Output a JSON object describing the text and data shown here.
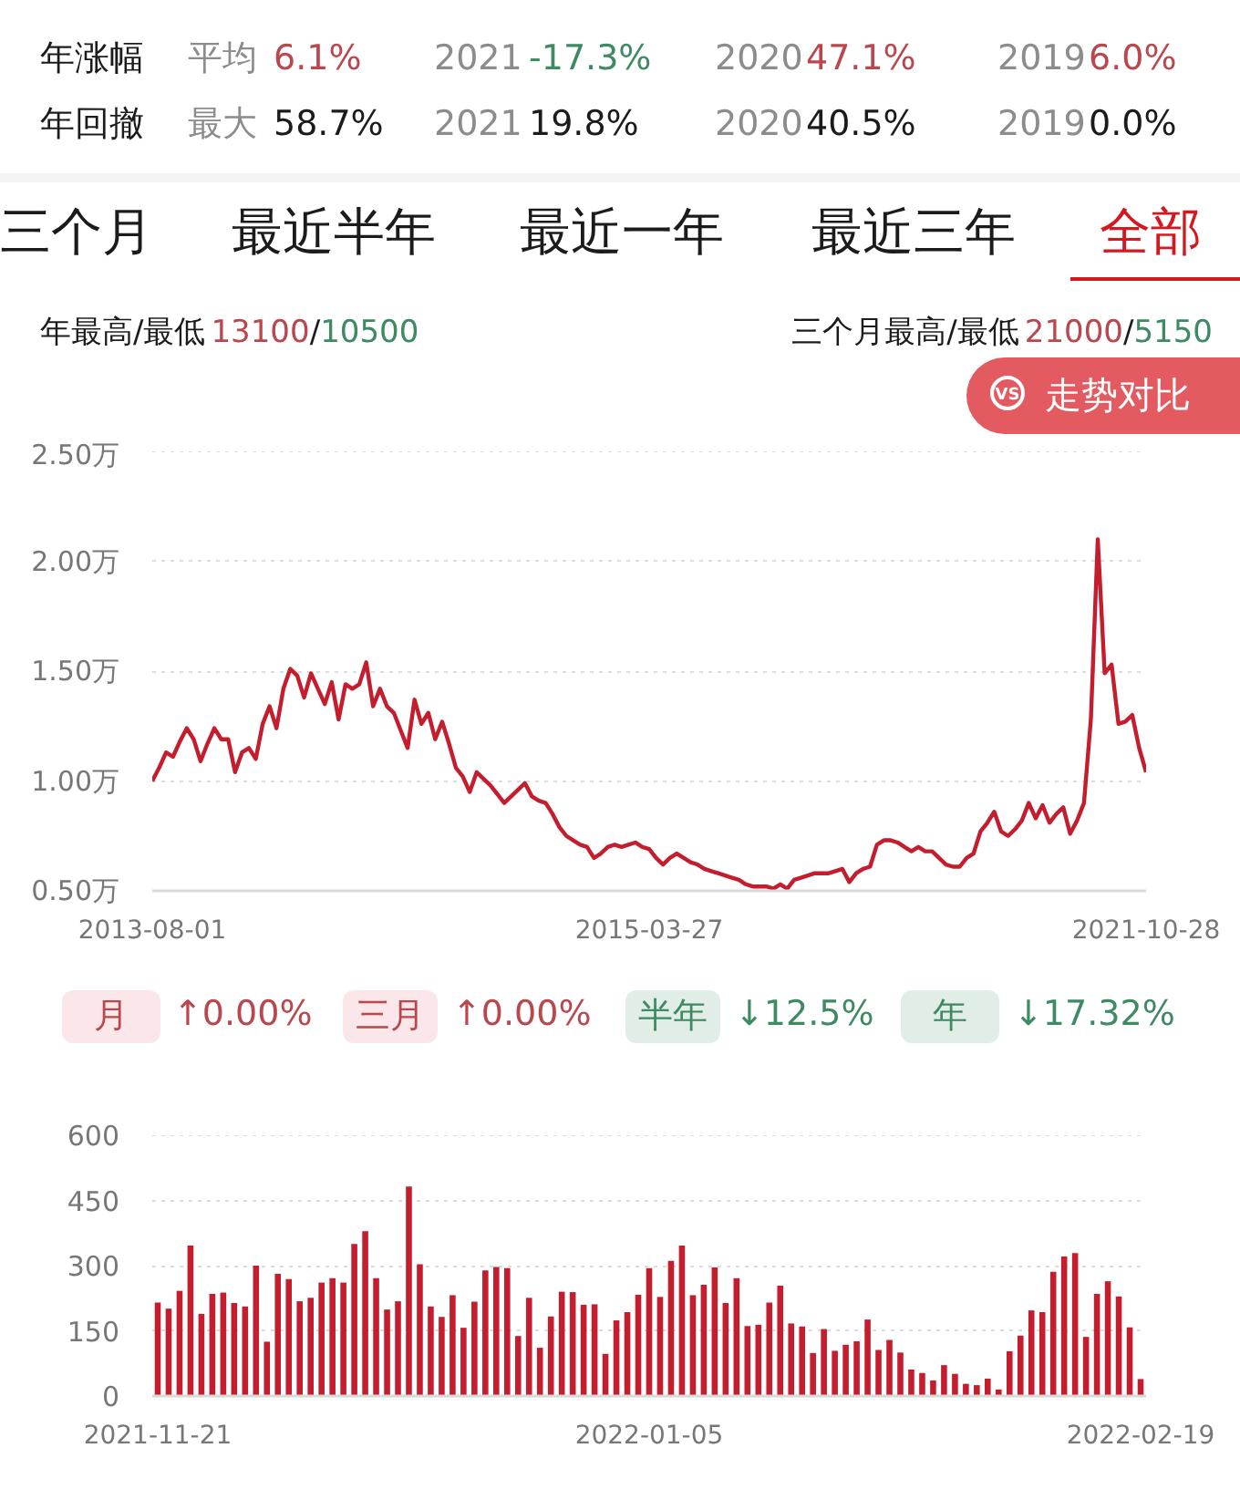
{
  "chart_data": [
    {
      "type": "other",
      "annotations": [
        "年涨幅",
        "平均",
        "6.1%",
        "2021",
        "-17.3%",
        "2020",
        "47.1%",
        "2019",
        "6.0%",
        "年回撤",
        "最大",
        "58.7%",
        "2021",
        "19.8%",
        "2020",
        "40.5%",
        "2019",
        "0.0%"
      ]
    },
    {
      "type": "line",
      "annotations": [
        "三个月",
        "最近半年",
        "最近一年",
        "最近三年",
        "全部",
        "年最高/最低",
        "13100/10500",
        "三个月最高/最低",
        "21000/5150",
        "VS",
        "走势对比"
      ],
      "categories": [
        "2013-08-01",
        null,
        null,
        null,
        null,
        null,
        null,
        null,
        null,
        null,
        null,
        null,
        null,
        null,
        null,
        null,
        null,
        null,
        null,
        null,
        null,
        null,
        null,
        null,
        null,
        null,
        null,
        null,
        null,
        null,
        null,
        null,
        null,
        null,
        null,
        null,
        null,
        null,
        null,
        null,
        null,
        null,
        null,
        null,
        null,
        null,
        null,
        null,
        null,
        null,
        null,
        null,
        null,
        null,
        null,
        null,
        null,
        null,
        null,
        null,
        null,
        null,
        null,
        null,
        null,
        null,
        null,
        null,
        null,
        null,
        null,
        null,
        "2015-03-27",
        null,
        null,
        null,
        null,
        null,
        null,
        null,
        null,
        null,
        null,
        null,
        null,
        null,
        null,
        null,
        null,
        null,
        null,
        null,
        null,
        null,
        null,
        null,
        null,
        null,
        null,
        null,
        null,
        null,
        null,
        null,
        null,
        null,
        null,
        null,
        null,
        null,
        null,
        null,
        null,
        null,
        null,
        null,
        null,
        null,
        null,
        null,
        null,
        null,
        null,
        null,
        null,
        null,
        null,
        null,
        null,
        null,
        null,
        null,
        null,
        null,
        null,
        null,
        null,
        null,
        null,
        null,
        null,
        null,
        null,
        null,
        "2021-10-28"
      ],
      "series": [
        {
          "color": "#c41e2e",
          "values": [
            1.0,
            1.06,
            1.13,
            1.11,
            1.18,
            1.24,
            1.19,
            1.09,
            1.17,
            1.24,
            1.19,
            1.19,
            1.04,
            1.13,
            1.15,
            1.1,
            1.26,
            1.34,
            1.24,
            1.42,
            1.51,
            1.48,
            1.38,
            1.49,
            1.42,
            1.35,
            1.45,
            1.28,
            1.44,
            1.42,
            1.44,
            1.54,
            1.34,
            1.42,
            1.34,
            1.31,
            1.23,
            1.15,
            1.37,
            1.26,
            1.31,
            1.19,
            1.27,
            1.17,
            1.06,
            1.02,
            0.95,
            1.04,
            1.01,
            0.98,
            0.94,
            0.9,
            0.93,
            0.96,
            0.99,
            0.93,
            0.91,
            0.9,
            0.85,
            0.79,
            0.75,
            0.73,
            0.71,
            0.7,
            0.65,
            0.67,
            0.7,
            0.71,
            0.7,
            0.71,
            0.72,
            0.7,
            0.69,
            0.65,
            0.62,
            0.65,
            0.67,
            0.65,
            0.63,
            0.62,
            0.6,
            0.59,
            0.58,
            0.57,
            0.56,
            0.55,
            0.53,
            0.52,
            0.52,
            0.52,
            0.51,
            0.53,
            0.51,
            0.55,
            0.56,
            0.57,
            0.58,
            0.58,
            0.58,
            0.59,
            0.6,
            0.54,
            0.58,
            0.6,
            0.61,
            0.71,
            0.73,
            0.73,
            0.72,
            0.7,
            0.68,
            0.7,
            0.68,
            0.68,
            0.65,
            0.62,
            0.61,
            0.61,
            0.65,
            0.67,
            0.77,
            0.81,
            0.86,
            0.77,
            0.75,
            0.78,
            0.82,
            0.9,
            0.83,
            0.89,
            0.81,
            0.85,
            0.88,
            0.76,
            0.82,
            0.9,
            1.28,
            2.1,
            1.49,
            1.53,
            1.26,
            1.27,
            1.3,
            1.15,
            1.04
          ]
        }
      ],
      "ylim": [
        0.5,
        2.5
      ],
      "yticks": [
        {
          "value": 0.5,
          "label": "0.50万"
        },
        {
          "value": 1.0,
          "label": "1.00万"
        },
        {
          "value": 1.5,
          "label": "1.50万"
        },
        {
          "value": 2.0,
          "label": "2.00万"
        },
        {
          "value": 2.5,
          "label": "2.50万"
        }
      ],
      "grid": "y"
    },
    {
      "type": "other",
      "annotations": [
        "月",
        "↑0.00%",
        "三月",
        "↑0.00%",
        "半年",
        "↓12.5%",
        "年",
        "↓17.32%"
      ]
    },
    {
      "type": "bar",
      "x": [
        "2021-11-21",
        "2021-11-22",
        "2021-11-23",
        "2021-11-24",
        "2021-11-25",
        "2021-11-26",
        "2021-11-27",
        "2021-11-28",
        "2021-11-29",
        "2021-11-30",
        "2021-12-01",
        "2021-12-02",
        "2021-12-03",
        "2021-12-04",
        "2021-12-05",
        "2021-12-06",
        "2021-12-07",
        "2021-12-08",
        "2021-12-09",
        "2021-12-10",
        "2021-12-11",
        "2021-12-12",
        "2021-12-13",
        "2021-12-14",
        "2021-12-15",
        "2021-12-16",
        "2021-12-17",
        "2021-12-18",
        "2021-12-19",
        "2021-12-20",
        "2021-12-21",
        "2021-12-22",
        "2021-12-23",
        "2021-12-24",
        "2021-12-25",
        "2021-12-26",
        "2021-12-27",
        "2021-12-28",
        "2021-12-29",
        "2021-12-30",
        "2021-12-31",
        "2022-01-01",
        "2022-01-02",
        "2022-01-03",
        "2022-01-04",
        "2022-01-05",
        "2022-01-06",
        "2022-01-07",
        "2022-01-08",
        "2022-01-09",
        "2022-01-10",
        "2022-01-11",
        "2022-01-12",
        "2022-01-13",
        "2022-01-14",
        "2022-01-15",
        "2022-01-16",
        "2022-01-17",
        "2022-01-18",
        "2022-01-19",
        "2022-01-20",
        "2022-01-21",
        "2022-01-22",
        "2022-01-23",
        "2022-01-24",
        "2022-01-25",
        "2022-01-26",
        "2022-01-27",
        "2022-01-28",
        "2022-01-29",
        "2022-01-30",
        "2022-01-31",
        "2022-02-01",
        "2022-02-02",
        "2022-02-03",
        "2022-02-04",
        "2022-02-05",
        "2022-02-06",
        "2022-02-07",
        "2022-02-08",
        "2022-02-09",
        "2022-02-10",
        "2022-02-11",
        "2022-02-12",
        "2022-02-13",
        "2022-02-14",
        "2022-02-15",
        "2022-02-16",
        "2022-02-17",
        "2022-02-18",
        "2022-02-19"
      ],
      "values": [
        215,
        201,
        242,
        346,
        189,
        235,
        238,
        214,
        206,
        300,
        125,
        281,
        269,
        218,
        226,
        261,
        271,
        261,
        350,
        379,
        271,
        199,
        218,
        482,
        303,
        206,
        182,
        232,
        157,
        217,
        289,
        297,
        294,
        138,
        226,
        111,
        183,
        240,
        239,
        210,
        211,
        97,
        174,
        193,
        233,
        294,
        228,
        311,
        346,
        232,
        256,
        296,
        214,
        271,
        161,
        164,
        215,
        254,
        167,
        160,
        99,
        154,
        104,
        118,
        126,
        176,
        106,
        129,
        100,
        61,
        53,
        36,
        71,
        51,
        28,
        25,
        40,
        15,
        103,
        139,
        197,
        193,
        286,
        321,
        329,
        136,
        235,
        264,
        229,
        158,
        39
      ],
      "color": "#c41e2e",
      "xlim": [
        "2021-11-20T12:00",
        "2022-02-19T12:00"
      ],
      "xticks": [
        "2021-11-21",
        "2022-01-05",
        "2022-02-19"
      ],
      "ylim": [
        0,
        600
      ],
      "yticks": [
        0,
        150,
        300,
        450,
        600
      ],
      "grid": "y"
    }
  ]
}
